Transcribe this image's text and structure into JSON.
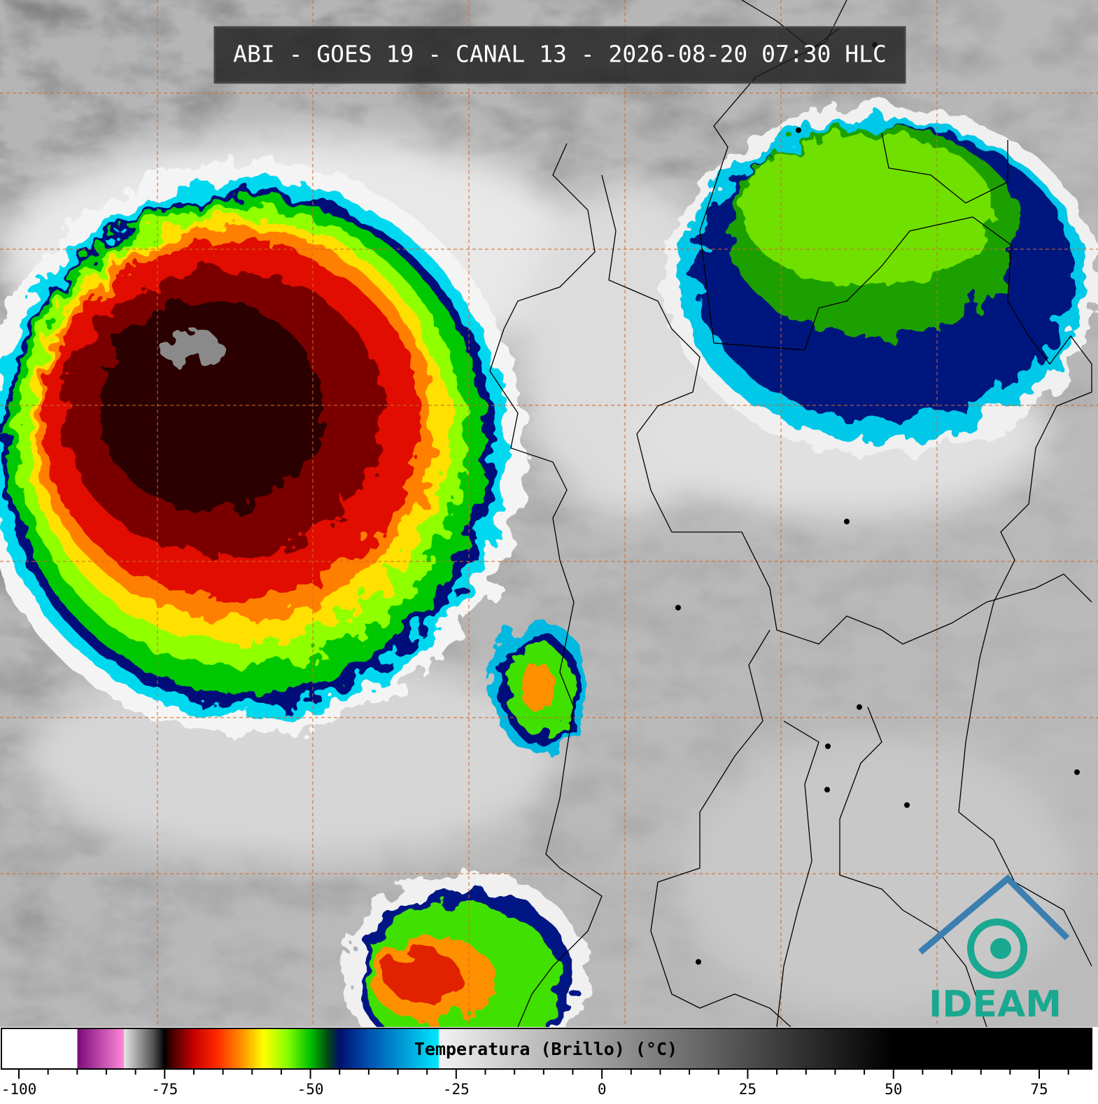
{
  "title": "ABI - GOES 19 - CANAL 13 - 2026-08-20 07:30 HLC",
  "logo": "IDEAM",
  "colorbar": {
    "label": "Temperatura (Brillo) (°C)",
    "lim": [
      -103,
      84
    ],
    "ticks": [
      -100,
      -75,
      -50,
      -25,
      0,
      25,
      50,
      75
    ],
    "minor_ticks": [
      -95,
      -90,
      -85,
      -80,
      -70,
      -65,
      -60,
      -55,
      -45,
      -40,
      -35,
      -30,
      -20,
      -15,
      -10,
      -5,
      5,
      10,
      15,
      20,
      30,
      35,
      40,
      45,
      55,
      60,
      65,
      70,
      80
    ],
    "stops": [
      {
        "value": -103,
        "color": "#ffffff"
      },
      {
        "value": -90,
        "color": "#ffffff"
      },
      {
        "value": -90,
        "color": "#7a0a7a"
      },
      {
        "value": -82,
        "color": "#ff88d8"
      },
      {
        "value": -82,
        "color": "#e6e6e6"
      },
      {
        "value": -77,
        "color": "#555555"
      },
      {
        "value": -75,
        "color": "#000000"
      },
      {
        "value": -74,
        "color": "#3a0000"
      },
      {
        "value": -70,
        "color": "#c80000"
      },
      {
        "value": -66,
        "color": "#ff2a00"
      },
      {
        "value": -62,
        "color": "#ff8a00"
      },
      {
        "value": -58,
        "color": "#ffff00"
      },
      {
        "value": -54,
        "color": "#88ff00"
      },
      {
        "value": -50,
        "color": "#00c000"
      },
      {
        "value": -47,
        "color": "#004a10"
      },
      {
        "value": -45,
        "color": "#001070"
      },
      {
        "value": -40,
        "color": "#0050b0"
      },
      {
        "value": -28,
        "color": "#00e8ff"
      },
      {
        "value": -28,
        "color": "#f2f2f2"
      },
      {
        "value": 50,
        "color": "#000000"
      },
      {
        "value": 84,
        "color": "#000000"
      }
    ]
  }
}
